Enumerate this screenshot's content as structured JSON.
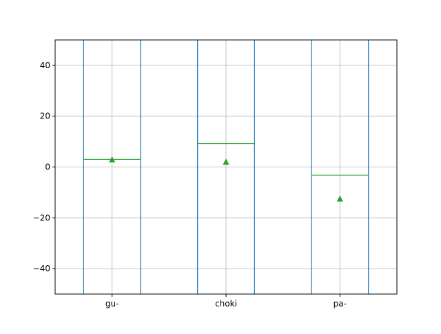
{
  "chart_data": {
    "type": "box",
    "title": "",
    "xlabel": "",
    "ylabel": "",
    "categories": [
      "gu-",
      "choki",
      "pa-"
    ],
    "series": [
      {
        "q1": [
          -50,
          -50,
          -50
        ],
        "q3": [
          50,
          50,
          50
        ],
        "median": [
          3,
          9.2,
          -3.2
        ],
        "mean": [
          2.9,
          2.0,
          -12.5
        ]
      }
    ],
    "ylim": [
      -50,
      50
    ],
    "yticks": [
      -40,
      -20,
      0,
      20,
      40
    ],
    "ytick_labels": [
      "−40",
      "−20",
      "0",
      "20",
      "40"
    ],
    "grid": true,
    "colors": {
      "box": "#1f77b4",
      "median": "#2ca02c",
      "mean_marker": "#2ca02c",
      "grid": "#b0b0b0",
      "axes": "#000000"
    }
  }
}
